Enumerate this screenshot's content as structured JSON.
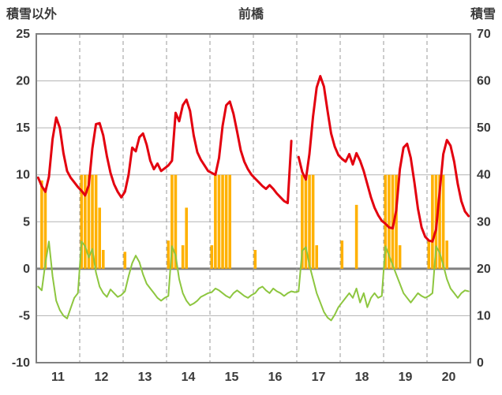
{
  "header": {
    "title": "前橋",
    "left_axis_title": "積雪以外",
    "right_axis_title": "積雪"
  },
  "colors": {
    "red_line": "#e3000f",
    "green_line": "#8dc63f",
    "bars": "#ffb100",
    "border": "#808080",
    "zero_line": "#808080",
    "h_grid": "#b3b3b3",
    "v_grid": "#9a9a9a",
    "text": "#3a3a3a"
  },
  "chart_data": {
    "type": "line+bar",
    "title": "前橋",
    "left_axis": {
      "label": "積雪以外",
      "min": -10,
      "max": 25,
      "ticks": [
        25,
        20,
        15,
        10,
        5,
        0,
        -5,
        -10
      ]
    },
    "right_axis": {
      "label": "積雪",
      "min": 0,
      "max": 70,
      "ticks": [
        70,
        60,
        50,
        40,
        30,
        20,
        10,
        0
      ]
    },
    "x_axis": {
      "days": [
        11,
        12,
        13,
        14,
        15,
        16,
        17,
        18,
        19,
        20
      ],
      "points_per_day": 12,
      "grid": "dashed-day-boundaries"
    },
    "legend": "none",
    "series": [
      {
        "name": "orange-bars",
        "type": "bar",
        "axis": "left",
        "baseline": 0,
        "values": [
          0,
          9.4,
          8.6,
          0,
          0,
          0,
          0,
          0,
          0,
          0,
          0,
          0,
          10,
          10,
          10,
          10,
          10,
          6.5,
          2,
          0,
          0,
          0,
          0,
          0,
          1.8,
          0,
          0,
          0,
          0,
          0,
          0,
          0,
          0,
          0,
          0,
          0,
          3,
          10,
          10,
          0,
          2.5,
          6.5,
          0,
          0,
          0,
          0,
          0,
          0,
          2.5,
          10,
          10,
          10,
          10,
          10,
          0,
          0,
          0,
          0,
          0,
          0,
          2,
          0,
          0,
          0,
          0,
          0,
          0,
          0,
          0,
          0,
          0,
          0,
          0,
          10,
          10,
          10,
          10,
          2.5,
          0,
          0,
          0,
          0,
          0,
          0,
          3,
          0,
          0,
          0,
          6.8,
          0,
          0,
          0,
          0,
          0,
          0,
          0,
          10,
          10,
          10,
          10,
          2.5,
          0,
          0,
          0,
          0,
          0,
          0,
          0,
          3,
          10,
          10,
          10,
          10,
          3,
          0,
          0,
          0,
          0,
          0,
          0
        ]
      },
      {
        "name": "green-line",
        "type": "line",
        "axis": "left",
        "stroke_width": 2,
        "values": [
          -1.9,
          -2.3,
          0.6,
          2.9,
          -0.8,
          -3.4,
          -4.4,
          -5.0,
          -5.3,
          -4.2,
          -3.1,
          -2.6,
          2.9,
          2.4,
          1.2,
          2.1,
          -0.4,
          -1.9,
          -2.6,
          -3.0,
          -2.2,
          -2.6,
          -3.0,
          -2.8,
          -2.4,
          -0.8,
          0.6,
          1.4,
          0.7,
          -0.6,
          -1.6,
          -2.1,
          -2.6,
          -3.1,
          -3.4,
          -3.1,
          -2.9,
          2.4,
          1.4,
          -1.1,
          -2.6,
          -3.4,
          -3.9,
          -3.7,
          -3.4,
          -3.0,
          -2.8,
          -2.6,
          -2.5,
          -2.1,
          -2.3,
          -2.6,
          -2.9,
          -3.1,
          -2.6,
          -2.3,
          -2.6,
          -2.9,
          -3.1,
          -2.8,
          -2.6,
          -2.1,
          -1.9,
          -2.3,
          -2.6,
          -2.1,
          -2.4,
          -2.6,
          -2.9,
          -2.6,
          -2.4,
          -2.5,
          -2.4,
          1.9,
          2.3,
          0.4,
          -1.1,
          -2.6,
          -3.6,
          -4.6,
          -5.2,
          -5.5,
          -4.9,
          -4.1,
          -3.6,
          -3.1,
          -2.6,
          -3.1,
          -2.1,
          -3.6,
          -2.6,
          -4.1,
          -3.1,
          -2.6,
          -3.1,
          -2.9,
          2.4,
          1.4,
          0.4,
          -0.6,
          -1.6,
          -2.6,
          -3.1,
          -3.6,
          -3.1,
          -2.6,
          -2.9,
          -3.1,
          -2.9,
          -2.6,
          2.4,
          1.7,
          0.4,
          -1.1,
          -2.1,
          -2.6,
          -3.1,
          -2.6,
          -2.3,
          -2.4
        ]
      },
      {
        "name": "red-line",
        "type": "line",
        "axis": "left",
        "stroke_width": 3,
        "values": [
          9.7,
          8.8,
          8.2,
          9.8,
          13.8,
          16.1,
          15.0,
          12.3,
          10.4,
          9.7,
          9.2,
          8.7,
          8.3,
          7.8,
          8.9,
          12.8,
          15.4,
          15.5,
          14.2,
          12.0,
          10.2,
          9.0,
          8.2,
          7.6,
          8.2,
          10.0,
          12.9,
          12.5,
          14.0,
          14.4,
          13.2,
          11.5,
          10.6,
          11.2,
          10.4,
          10.7,
          11.0,
          11.5,
          16.6,
          15.7,
          17.4,
          18.0,
          16.8,
          14.2,
          12.4,
          11.6,
          11.0,
          10.4,
          10.2,
          10.0,
          11.8,
          15.2,
          17.4,
          17.8,
          16.5,
          14.6,
          12.6,
          11.4,
          10.6,
          10.0,
          9.6,
          9.2,
          8.8,
          8.5,
          8.9,
          8.5,
          8.0,
          7.6,
          7.2,
          7.0,
          13.6,
          null,
          11.9,
          10.3,
          9.5,
          12.2,
          16.2,
          19.3,
          20.5,
          19.4,
          16.8,
          14.4,
          13.0,
          12.1,
          11.7,
          11.4,
          12.2,
          11.1,
          12.3,
          11.5,
          10.4,
          9.0,
          7.6,
          6.5,
          5.7,
          5.1,
          4.8,
          4.4,
          4.3,
          6.2,
          10.6,
          12.9,
          13.3,
          11.8,
          9.2,
          6.4,
          4.4,
          3.4,
          3.0,
          2.9,
          4.2,
          8.2,
          12.2,
          13.7,
          13.1,
          11.4,
          9.0,
          7.2,
          6.1,
          5.6
        ]
      }
    ]
  }
}
